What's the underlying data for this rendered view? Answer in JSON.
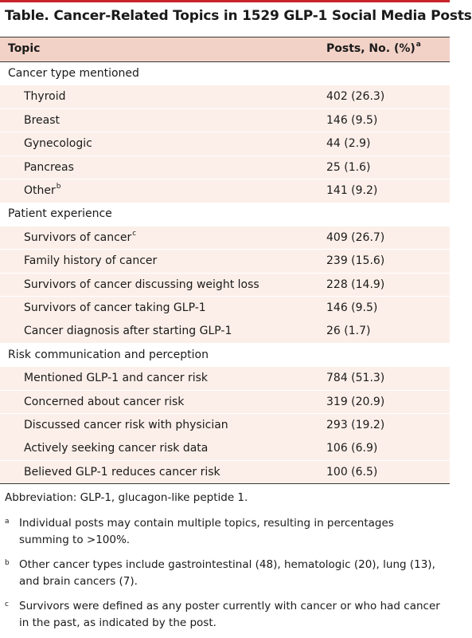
{
  "title": "Table. Cancer-Related Topics in 1529 GLP-1 Social Media Posts",
  "header": {
    "topic": "Topic",
    "posts": "Posts, No. (%)",
    "posts_mark": "a"
  },
  "rows": [
    {
      "type": "cat",
      "label": "Cancer type mentioned",
      "value": ""
    },
    {
      "type": "sub",
      "label": "Thyroid",
      "value": "402 (26.3)"
    },
    {
      "type": "sub",
      "label": "Breast",
      "value": "146 (9.5)"
    },
    {
      "type": "sub",
      "label": "Gynecologic",
      "value": "44 (2.9)"
    },
    {
      "type": "sub",
      "label": "Pancreas",
      "value": "25 (1.6)"
    },
    {
      "type": "sub",
      "label": "Other",
      "mark": "b",
      "value": "141 (9.2)"
    },
    {
      "type": "cat",
      "label": "Patient experience",
      "value": ""
    },
    {
      "type": "sub",
      "label": "Survivors of cancer",
      "mark": "c",
      "value": "409 (26.7)"
    },
    {
      "type": "sub",
      "label": "Family history of cancer",
      "value": "239 (15.6)"
    },
    {
      "type": "sub",
      "label": "Survivors of cancer discussing weight loss",
      "value": "228 (14.9)"
    },
    {
      "type": "sub",
      "label": "Survivors of cancer taking GLP-1",
      "value": "146 (9.5)"
    },
    {
      "type": "sub",
      "label": "Cancer diagnosis after starting GLP-1",
      "value": "26 (1.7)"
    },
    {
      "type": "cat",
      "label": "Risk communication and perception",
      "value": ""
    },
    {
      "type": "sub",
      "label": "Mentioned GLP-1 and cancer risk",
      "value": "784 (51.3)"
    },
    {
      "type": "sub",
      "label": "Concerned about cancer risk",
      "value": "319 (20.9)"
    },
    {
      "type": "sub",
      "label": "Discussed cancer risk with physician",
      "value": "293 (19.2)"
    },
    {
      "type": "sub",
      "label": "Actively seeking cancer risk data",
      "value": "106 (6.9)"
    },
    {
      "type": "sub",
      "label": "Believed GLP-1 reduces cancer risk",
      "value": "100 (6.5)"
    }
  ],
  "footnotes": {
    "abbreviation": "Abbreviation: GLP-1, glucagon-like peptide 1.",
    "notes": [
      {
        "mark": "a",
        "text": "Individual posts may contain multiple topics, resulting in percentages summing to >100%."
      },
      {
        "mark": "b",
        "text": "Other cancer types include gastrointestinal (48), hematologic (20), lung (13), and brain cancers (7)."
      },
      {
        "mark": "c",
        "text": "Survivors were defined as any poster currently with cancer or who had cancer in the past, as indicated by the post."
      }
    ]
  },
  "colors": {
    "accent": "#c8242b",
    "header_bg": "#f2d2c7",
    "subrow_bg": "#fcefe9"
  }
}
